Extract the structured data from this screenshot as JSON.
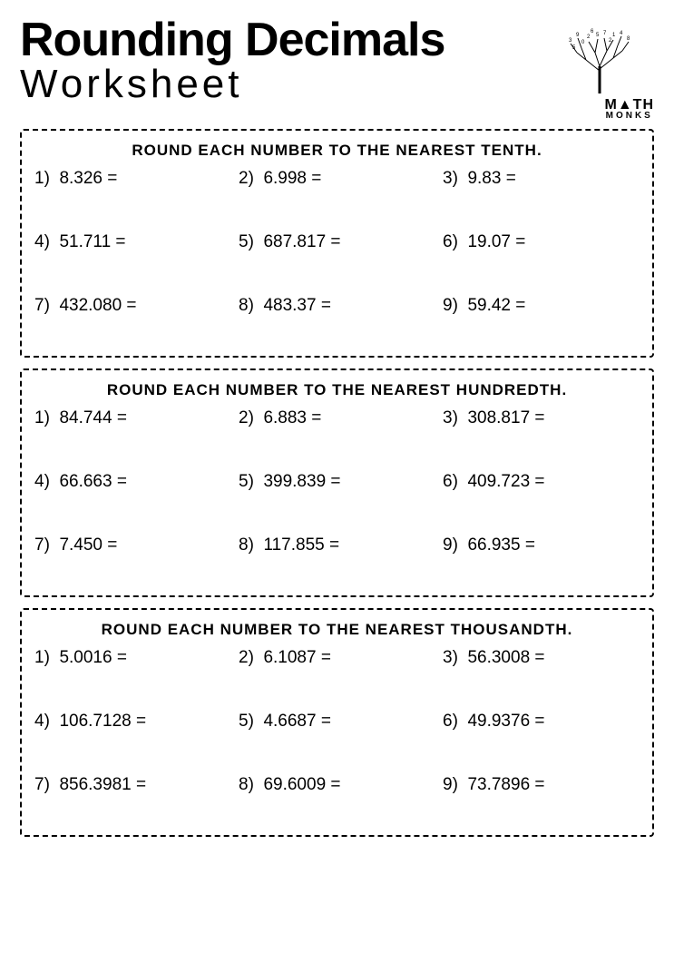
{
  "header": {
    "main_title": "Rounding Decimals",
    "sub_title": "Worksheet",
    "brand_top": "M",
    "brand_tri": "▲",
    "brand_rest": "TH",
    "brand_sub": "MONKS"
  },
  "sections": [
    {
      "title": "Round each number to the nearest tenth.",
      "problems": [
        {
          "n": "1)",
          "v": "8.326 ="
        },
        {
          "n": "2)",
          "v": "6.998 ="
        },
        {
          "n": "3)",
          "v": "9.83 ="
        },
        {
          "n": "4)",
          "v": "51.711 ="
        },
        {
          "n": "5)",
          "v": "687.817 ="
        },
        {
          "n": "6)",
          "v": "19.07 ="
        },
        {
          "n": "7)",
          "v": "432.080 ="
        },
        {
          "n": "8)",
          "v": "483.37 ="
        },
        {
          "n": "9)",
          "v": "59.42 ="
        }
      ]
    },
    {
      "title": "Round each number to the nearest hundredth.",
      "problems": [
        {
          "n": "1)",
          "v": "84.744 ="
        },
        {
          "n": "2)",
          "v": "6.883 ="
        },
        {
          "n": "3)",
          "v": "308.817 ="
        },
        {
          "n": "4)",
          "v": "66.663 ="
        },
        {
          "n": "5)",
          "v": "399.839 ="
        },
        {
          "n": "6)",
          "v": "409.723 ="
        },
        {
          "n": "7)",
          "v": "7.450 ="
        },
        {
          "n": "8)",
          "v": "117.855 ="
        },
        {
          "n": "9)",
          "v": "66.935 ="
        }
      ]
    },
    {
      "title": "Round each number to the nearest thousandth.",
      "problems": [
        {
          "n": "1)",
          "v": "5.0016 ="
        },
        {
          "n": "2)",
          "v": "6.1087 ="
        },
        {
          "n": "3)",
          "v": "56.3008 ="
        },
        {
          "n": "4)",
          "v": "106.7128 ="
        },
        {
          "n": "5)",
          "v": "4.6687 ="
        },
        {
          "n": "6)",
          "v": "49.9376 ="
        },
        {
          "n": "7)",
          "v": "856.3981 ="
        },
        {
          "n": "8)",
          "v": "69.6009 ="
        },
        {
          "n": "9)",
          "v": "73.7896 ="
        }
      ]
    }
  ]
}
